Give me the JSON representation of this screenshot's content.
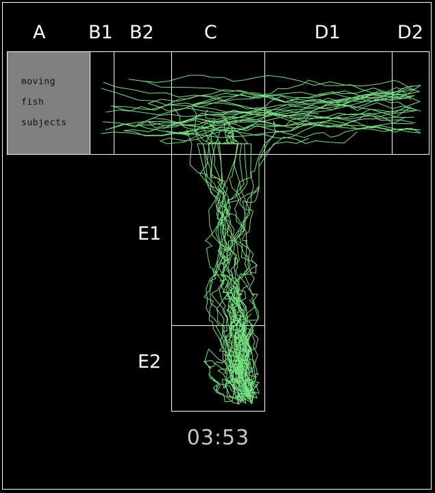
{
  "zones": {
    "A": "A",
    "B1": "B1",
    "B2": "B2",
    "C": "C",
    "D1": "D1",
    "D2": "D2",
    "E1": "E1",
    "E2": "E2"
  },
  "legend": {
    "line1": "moving",
    "line2": "fish",
    "line3": "subjects"
  },
  "timer": "03:53",
  "colors": {
    "background": "#000000",
    "grid": "#ffffff",
    "trace": "#7cf08a",
    "legend_bg": "#808080"
  }
}
